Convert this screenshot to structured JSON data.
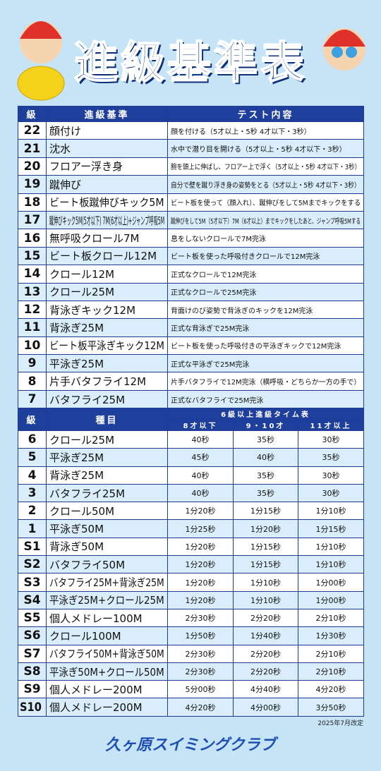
{
  "header": {
    "title": "進級基準表"
  },
  "table1": {
    "header": [
      "級",
      "進級基準",
      "テスト内容"
    ],
    "rows": [
      [
        "22",
        "顔付け",
        "顔を付ける（5才以上・5秒 4才以下・3秒）"
      ],
      [
        "21",
        "沈水",
        "水中で潜り目を開ける（5才以上・5秒 4才以下・3秒）"
      ],
      [
        "20",
        "フロアー浮き身",
        "腕を頭上に伸ばし、フロアー上で浮く（5才以上・5秒 4才以下・3秒）"
      ],
      [
        "19",
        "蹴伸び",
        "自分で壁を蹴り浮き身の姿勢をとる（5才以上・5秒 4才以下・3秒）"
      ],
      [
        "18",
        "ビート板蹴伸びキック5M",
        "ビート板を使って（顔入れ）、蹴伸びをして5Mまでキックをする"
      ],
      [
        "17",
        "蹴伸びキック5M(5才以下) 7M(6才以上)+ジャンプ呼吸5M",
        "蹴伸びをして5M（5才以下）7M（6才以上）までキックをしたあと、ジャンプ呼吸5Mする"
      ],
      [
        "16",
        "無呼吸クロール7M",
        "息をしないクロールで7M完泳"
      ],
      [
        "15",
        "ビート板クロール12M",
        "ビート板を使った呼吸付きクロールで12M完泳"
      ],
      [
        "14",
        "クロール12M",
        "正式なクロールで12M完泳"
      ],
      [
        "13",
        "クロール25M",
        "正式なクロールで25M完泳"
      ],
      [
        "12",
        "背泳ぎキック12M",
        "背面けのび姿勢で背泳ぎのキックを12M完泳"
      ],
      [
        "11",
        "背泳ぎ25M",
        "正式な背泳ぎで25M完泳"
      ],
      [
        "10",
        "ビート板平泳ぎキック12M",
        "ビート板を使った呼吸付きの平泳ぎキックで12M完泳"
      ],
      [
        "9",
        "平泳ぎ25M",
        "正式な平泳ぎで25M完泳"
      ],
      [
        "8",
        "片手バタフライ12M",
        "片手バタフライで12M完泳（横呼吸・どちらか一方の手で）"
      ],
      [
        "7",
        "バタフライ25M",
        "正式なバタフライで25M完泳"
      ]
    ]
  },
  "table2": {
    "header": {
      "grade": "級",
      "event": "種目",
      "group": "6級以上進級タイム表",
      "ages": [
        "8才以下",
        "9・10才",
        "11才以上"
      ]
    },
    "rows": [
      [
        "6",
        "クロール25M",
        "40秒",
        "35秒",
        "30秒"
      ],
      [
        "5",
        "平泳ぎ25M",
        "45秒",
        "40秒",
        "35秒"
      ],
      [
        "4",
        "背泳ぎ25M",
        "40秒",
        "35秒",
        "30秒"
      ],
      [
        "3",
        "バタフライ25M",
        "40秒",
        "35秒",
        "30秒"
      ],
      [
        "2",
        "クロール50M",
        "1分20秒",
        "1分15秒",
        "1分10秒"
      ],
      [
        "1",
        "平泳ぎ50M",
        "1分25秒",
        "1分20秒",
        "1分15秒"
      ],
      [
        "S1",
        "背泳ぎ50M",
        "1分20秒",
        "1分15秒",
        "1分10秒"
      ],
      [
        "S2",
        "バタフライ50M",
        "1分20秒",
        "1分15秒",
        "1分10秒"
      ],
      [
        "S3",
        "バタフライ25M+背泳ぎ25M",
        "1分20秒",
        "1分10秒",
        "1分00秒"
      ],
      [
        "S4",
        "平泳ぎ25M+クロール25M",
        "1分20秒",
        "1分10秒",
        "1分00秒"
      ],
      [
        "S5",
        "個人メドレー100M",
        "2分30秒",
        "2分20秒",
        "2分10秒"
      ],
      [
        "S6",
        "クロール100M",
        "1分50秒",
        "1分40秒",
        "1分30秒"
      ],
      [
        "S7",
        "バタフライ50M+背泳ぎ50M",
        "2分30秒",
        "2分20秒",
        "2分10秒"
      ],
      [
        "S8",
        "平泳ぎ50M+クロール50M",
        "2分30秒",
        "2分20秒",
        "2分10秒"
      ],
      [
        "S9",
        "個人メドレー200M",
        "5分00秒",
        "4分40秒",
        "4分20秒"
      ],
      [
        "S10",
        "個人メドレー200M",
        "4分20秒",
        "4分00秒",
        "3分50秒"
      ]
    ]
  },
  "footer": {
    "revised": "2025年7月改定",
    "logo": "久ヶ原スイミングクラブ"
  }
}
